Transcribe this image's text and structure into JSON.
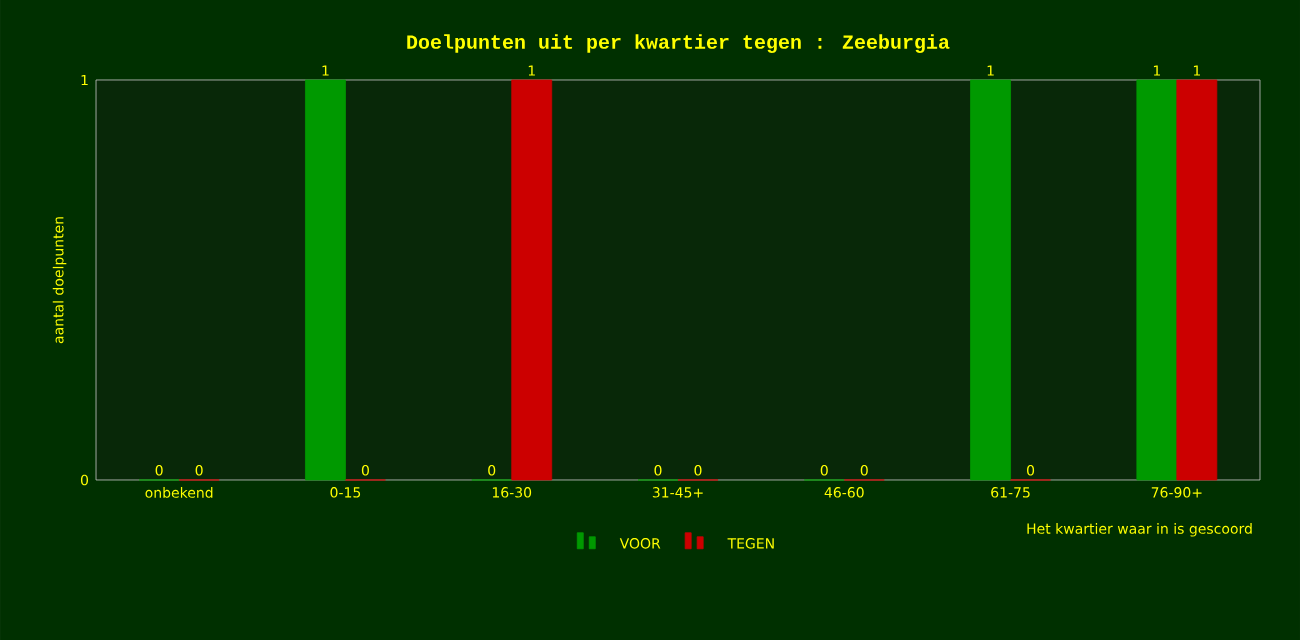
{
  "chart_data": {
    "type": "bar",
    "title": "Doelpunten uit per kwartier tegen : Zeeburgia",
    "xlabel": "Het kwartier waar in is gescoord",
    "ylabel": "aantal doelpunten",
    "categories": [
      "onbekend",
      "0-15",
      "16-30",
      "31-45+",
      "46-60",
      "61-75",
      "76-90+"
    ],
    "series": [
      {
        "name": "VOOR",
        "color": "#009900",
        "values": [
          0,
          1,
          0,
          0,
          0,
          1,
          1
        ]
      },
      {
        "name": "TEGEN",
        "color": "#cc0000",
        "values": [
          0,
          0,
          1,
          0,
          0,
          0,
          1
        ]
      }
    ],
    "ylim": [
      0,
      1
    ],
    "yticks": [
      0,
      1
    ],
    "data_labels": true,
    "legend": "bottom"
  }
}
